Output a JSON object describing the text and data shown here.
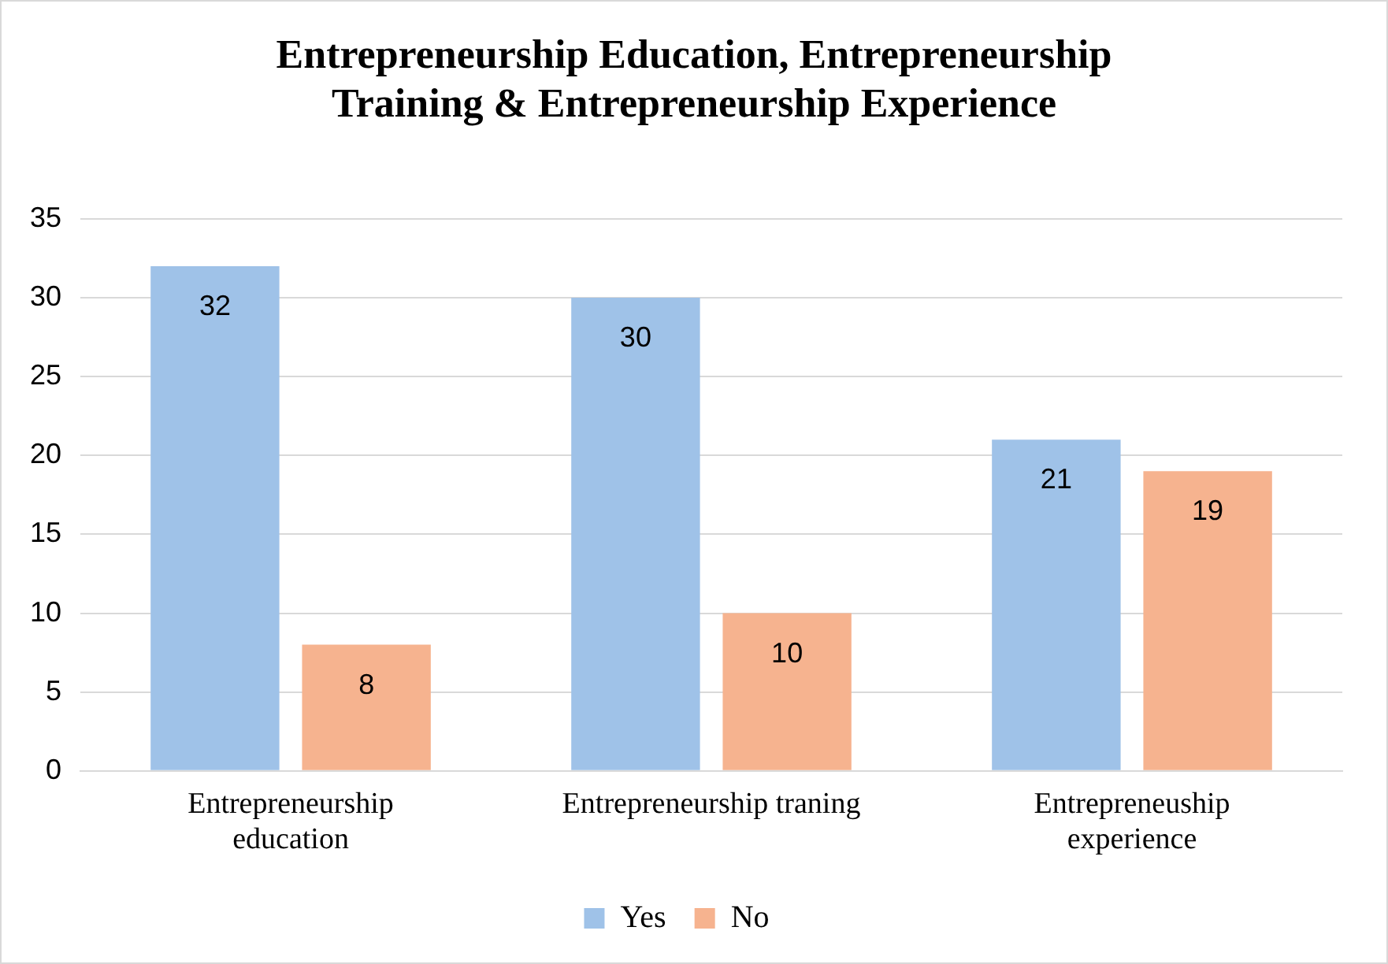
{
  "chart_data": {
    "type": "bar",
    "title": "Entrepreneurship Education, Entrepreneurship Training & Entrepreneurship Experience",
    "categories": [
      "Entrepreneurship education",
      "Entrepreneurship traning",
      "Entrepreneuship experience"
    ],
    "series": [
      {
        "name": "Yes",
        "color": "#9fc2e8",
        "values": [
          32,
          30,
          21
        ]
      },
      {
        "name": "No",
        "color": "#f6b38f",
        "values": [
          8,
          10,
          19
        ]
      }
    ],
    "ylim": [
      0,
      35
    ],
    "yticks": [
      0,
      5,
      10,
      15,
      20,
      25,
      30,
      35
    ],
    "grid": "y",
    "legend": "bottom",
    "data_labels": true
  }
}
